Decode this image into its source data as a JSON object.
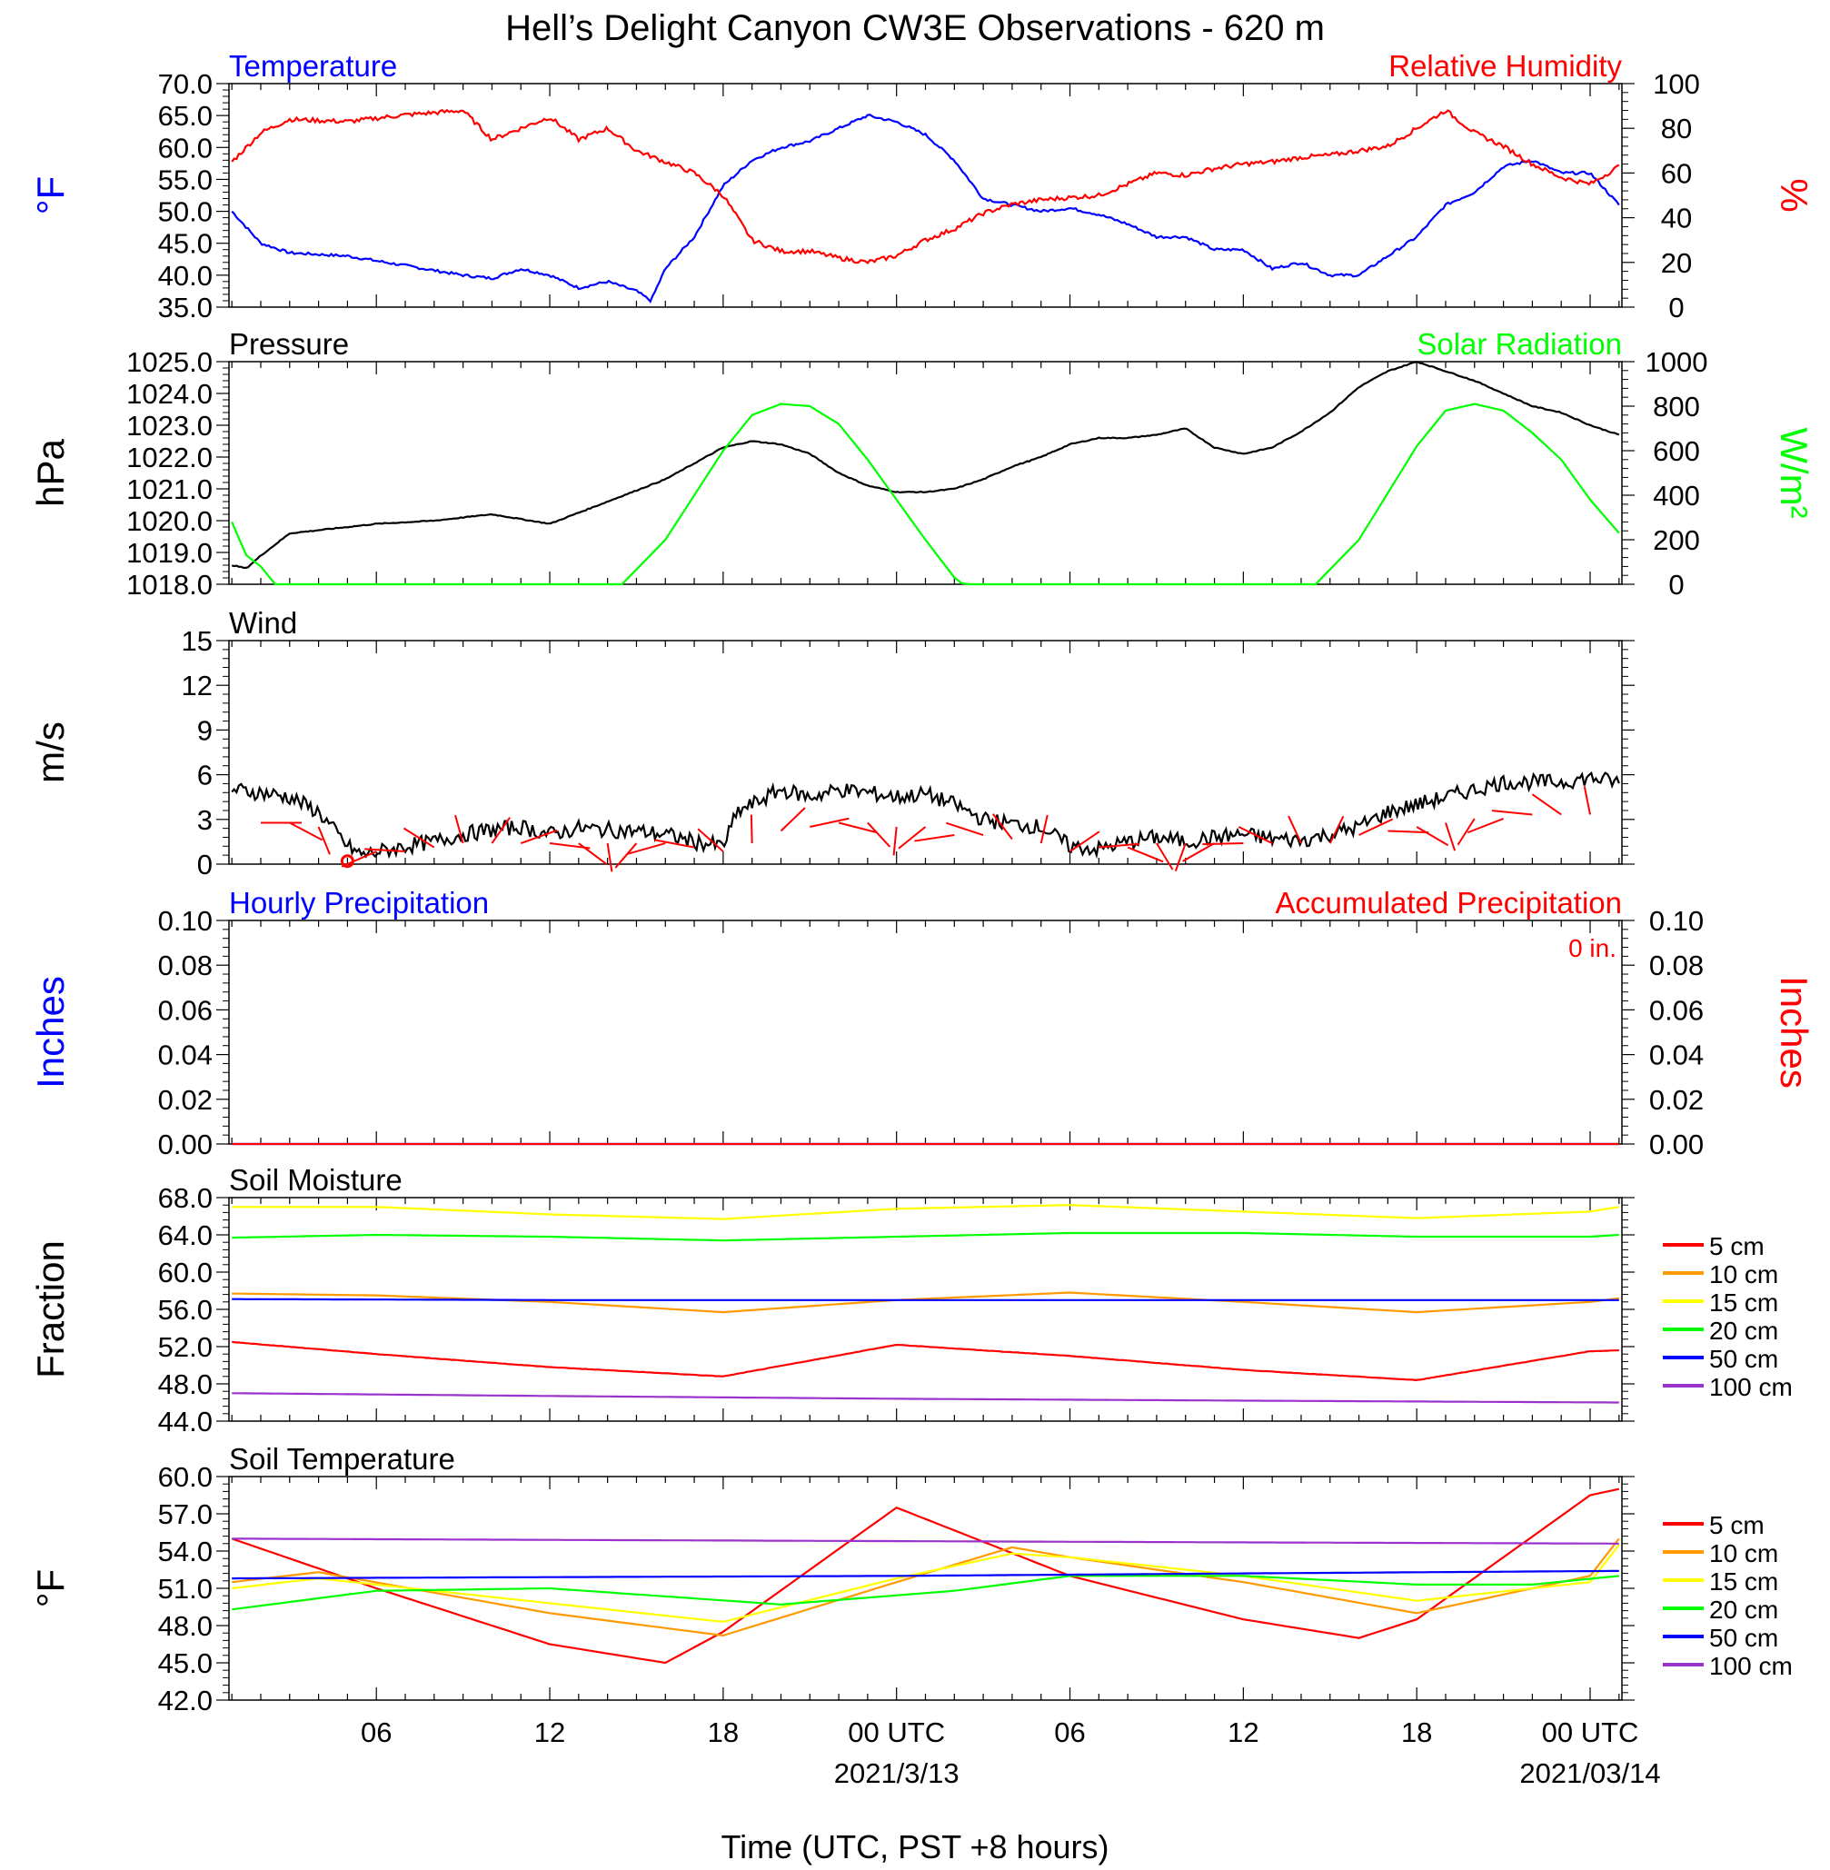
{
  "title": "Hell’s Delight Canyon CW3E Observations - 620 m",
  "xaxis_title": "Time (UTC, PST +8 hours)",
  "x_tick_labels": [
    "06",
    "12",
    "18",
    "00 UTC",
    "06",
    "12",
    "18",
    "00 UTC"
  ],
  "x_tick_hours": [
    6,
    12,
    18,
    24,
    30,
    36,
    42,
    48
  ],
  "x_range_hours": [
    0.9,
    49.1
  ],
  "date_labels": [
    {
      "hour": 24,
      "text": "2021/3/13"
    },
    {
      "hour": 48,
      "text": "2021/03/14"
    }
  ],
  "colors": {
    "temperature": "#0000ff",
    "humidity": "#ff0000",
    "pressure": "#000000",
    "solar": "#00ff00",
    "wind": "#000000",
    "barb": "#ff0000",
    "hourly_precip": "#0000ff",
    "accum_precip": "#ff0000"
  },
  "chart_data": [
    {
      "type": "line",
      "panel": "temperature-humidity",
      "left_title": "Temperature",
      "right_title": "Relative Humidity",
      "ylabel_left": "°F",
      "ylabel_right": "%",
      "ylim_left": [
        35,
        70
      ],
      "ylim_right": [
        0,
        100
      ],
      "yticks_left": [
        "70.0",
        "65.0",
        "60.0",
        "55.0",
        "50.0",
        "45.0",
        "40.0",
        "35.0"
      ],
      "yticks_right": [
        "100",
        "80",
        "60",
        "40",
        "20",
        "0"
      ],
      "series": [
        {
          "name": "Temperature",
          "axis": "left",
          "color": "#0000ff",
          "x": [
            1,
            2,
            3,
            5,
            7,
            9,
            10,
            11,
            12,
            13,
            14,
            15,
            15.5,
            16,
            17,
            18,
            19,
            20,
            21,
            22,
            23,
            24,
            25,
            26,
            27,
            28,
            29,
            30,
            31,
            32,
            33,
            34,
            35,
            36,
            37,
            38,
            39,
            40,
            41,
            42,
            43,
            44,
            45,
            46,
            47,
            48,
            49
          ],
          "y": [
            50,
            45,
            43.5,
            43,
            41.5,
            40,
            39.5,
            41,
            40,
            38,
            39,
            37.5,
            36,
            41,
            46,
            54,
            58,
            60,
            61,
            63,
            65,
            64,
            62,
            58,
            52,
            51,
            50,
            50.5,
            49.5,
            48,
            46,
            46,
            44,
            44,
            41,
            42,
            40,
            40,
            43,
            46,
            51,
            53,
            57,
            58,
            56,
            56,
            51
          ]
        },
        {
          "name": "Relative Humidity",
          "axis": "right",
          "color": "#ff0000",
          "x": [
            1,
            2,
            3,
            5,
            7,
            9,
            10,
            11,
            12,
            13,
            14,
            15,
            16,
            17,
            18,
            19,
            20,
            21,
            22,
            23,
            24,
            25,
            26,
            27,
            28,
            29,
            30,
            31,
            32,
            33,
            34,
            35,
            36,
            37,
            38,
            39,
            40,
            41,
            42,
            43,
            44,
            45,
            46,
            47,
            48,
            49
          ],
          "y": [
            65,
            78,
            84,
            83,
            86,
            88,
            75,
            80,
            85,
            75,
            80,
            70,
            65,
            60,
            50,
            30,
            25,
            25,
            22,
            20,
            23,
            30,
            35,
            42,
            46,
            48,
            49,
            50,
            55,
            60,
            59,
            62,
            64,
            65,
            67,
            68,
            70,
            72,
            80,
            88,
            78,
            72,
            64,
            58,
            55,
            63
          ]
        }
      ]
    },
    {
      "type": "line",
      "panel": "pressure-solar",
      "left_title": "Pressure",
      "right_title": "Solar Radiation",
      "ylabel_left": "hPa",
      "ylabel_right": "W/m²",
      "ylim_left": [
        1018,
        1025
      ],
      "ylim_right": [
        0,
        1000
      ],
      "yticks_left": [
        "1025.0",
        "1024.0",
        "1023.0",
        "1022.0",
        "1021.0",
        "1020.0",
        "1019.0",
        "1018.0"
      ],
      "yticks_right": [
        "1000",
        "800",
        "600",
        "400",
        "200",
        "0"
      ],
      "series": [
        {
          "name": "Pressure",
          "axis": "left",
          "color": "#000000",
          "x": [
            1,
            1.5,
            2,
            3,
            4,
            6,
            8,
            10,
            12,
            14,
            16,
            18,
            19,
            20,
            21,
            22,
            23,
            24,
            25,
            26,
            27,
            28,
            29,
            30,
            31,
            32,
            33,
            34,
            35,
            36,
            37,
            38,
            39,
            40,
            41,
            42,
            43,
            44,
            45,
            46,
            47,
            48,
            49
          ],
          "y": [
            1018.6,
            1018.5,
            1018.9,
            1019.6,
            1019.7,
            1019.9,
            1020.0,
            1020.2,
            1019.9,
            1020.6,
            1021.3,
            1022.3,
            1022.5,
            1022.4,
            1022.1,
            1021.5,
            1021.1,
            1020.9,
            1020.9,
            1021.0,
            1021.3,
            1021.7,
            1022.0,
            1022.4,
            1022.6,
            1022.6,
            1022.7,
            1022.9,
            1022.3,
            1022.1,
            1022.3,
            1022.8,
            1023.4,
            1024.2,
            1024.7,
            1025.0,
            1024.7,
            1024.4,
            1024.0,
            1023.6,
            1023.4,
            1023.0,
            1022.7
          ]
        },
        {
          "name": "Solar Radiation",
          "axis": "right",
          "color": "#00ff00",
          "x": [
            1,
            1.5,
            2,
            2.5,
            14.5,
            16,
            18,
            19,
            20,
            21,
            22,
            23,
            24,
            25,
            26,
            26.3,
            38.5,
            40,
            42,
            43,
            44,
            45,
            46,
            47,
            48,
            49
          ],
          "y": [
            280,
            130,
            80,
            0,
            0,
            200,
            600,
            760,
            810,
            800,
            720,
            560,
            380,
            200,
            30,
            0,
            0,
            200,
            620,
            780,
            810,
            780,
            680,
            560,
            380,
            230
          ]
        }
      ]
    },
    {
      "type": "line",
      "panel": "wind",
      "left_title": "Wind",
      "ylabel_left": "m/s",
      "ylim_left": [
        0,
        15
      ],
      "yticks_left": [
        "15",
        "12",
        "9",
        "6",
        "3",
        "0"
      ],
      "series": [
        {
          "name": "Wind",
          "axis": "left",
          "color": "#000000",
          "x": [
            1,
            2,
            3,
            4,
            5,
            5.5,
            6,
            7,
            8,
            9,
            10,
            11,
            12,
            13,
            14,
            15,
            16,
            17,
            18,
            18.5,
            19,
            20,
            21,
            22,
            23,
            24,
            25,
            26,
            27,
            28,
            29,
            30,
            31,
            32,
            33,
            34,
            35,
            36,
            37,
            38,
            39,
            40,
            41,
            42,
            43,
            44,
            45,
            46,
            47,
            48,
            49
          ],
          "y": [
            5,
            4.8,
            4.5,
            3.5,
            1.2,
            0.6,
            0.8,
            1.2,
            1.5,
            2,
            2.3,
            2.5,
            2,
            2.4,
            2.3,
            2.2,
            2,
            1.5,
            1.2,
            3.5,
            4,
            5,
            4.5,
            5,
            4.8,
            4.5,
            4.7,
            4,
            3,
            2.7,
            2.5,
            1.2,
            1,
            1.5,
            1.8,
            1.5,
            1.8,
            2,
            1.7,
            1.6,
            2,
            2.5,
            3.5,
            4,
            4.5,
            5,
            5.5,
            5.5,
            5.5,
            5.8,
            5.5
          ]
        }
      ]
    },
    {
      "type": "line",
      "panel": "precipitation",
      "left_title": "Hourly Precipitation",
      "right_title": "Accumulated Precipitation",
      "ylabel_left": "Inches",
      "ylabel_right": "Inches",
      "annotation": "0 in.",
      "ylim_left": [
        0,
        0.1
      ],
      "ylim_right": [
        0,
        0.1
      ],
      "yticks_left": [
        "0.10",
        "0.08",
        "0.06",
        "0.04",
        "0.02",
        "0.00"
      ],
      "yticks_right": [
        "0.10",
        "0.08",
        "0.06",
        "0.04",
        "0.02",
        "0.00"
      ],
      "series": [
        {
          "name": "Hourly Precipitation",
          "axis": "left",
          "color": "#0000ff",
          "x": [
            1,
            49
          ],
          "y": [
            0,
            0
          ]
        },
        {
          "name": "Accumulated Precipitation",
          "axis": "right",
          "color": "#ff0000",
          "x": [
            1,
            49
          ],
          "y": [
            0,
            0
          ]
        }
      ]
    },
    {
      "type": "line",
      "panel": "soil-moisture",
      "left_title": "Soil Moisture",
      "ylabel_left": "Fraction",
      "ylim_left": [
        44,
        68
      ],
      "yticks_left": [
        "68.0",
        "64.0",
        "60.0",
        "56.0",
        "52.0",
        "48.0",
        "44.0"
      ],
      "series": [
        {
          "name": "5 cm",
          "color": "#ff0000",
          "x": [
            1,
            6,
            12,
            18,
            24,
            30,
            36,
            42,
            48,
            49
          ],
          "y": [
            52.5,
            51.2,
            49.8,
            48.8,
            52.2,
            51.0,
            49.5,
            48.4,
            51.5,
            51.6
          ]
        },
        {
          "name": "10 cm",
          "color": "#ff9900",
          "x": [
            1,
            6,
            12,
            18,
            24,
            30,
            36,
            42,
            48,
            49
          ],
          "y": [
            57.7,
            57.5,
            56.8,
            55.7,
            57.0,
            57.8,
            56.8,
            55.7,
            56.8,
            57.2
          ]
        },
        {
          "name": "15 cm",
          "color": "#ffff00",
          "x": [
            1,
            6,
            12,
            18,
            24,
            30,
            36,
            42,
            48,
            49
          ],
          "y": [
            67.0,
            67.0,
            66.2,
            65.7,
            66.8,
            67.2,
            66.5,
            65.8,
            66.5,
            67.0
          ]
        },
        {
          "name": "20 cm",
          "color": "#00ff00",
          "x": [
            1,
            6,
            12,
            18,
            24,
            30,
            36,
            42,
            48,
            49
          ],
          "y": [
            63.7,
            64.0,
            63.8,
            63.4,
            63.8,
            64.2,
            64.2,
            63.8,
            63.8,
            64.0
          ]
        },
        {
          "name": "50 cm",
          "color": "#0000ff",
          "x": [
            1,
            12,
            24,
            36,
            49
          ],
          "y": [
            57.1,
            57.0,
            57.0,
            57.0,
            57.0
          ]
        },
        {
          "name": "100 cm",
          "color": "#9933cc",
          "x": [
            1,
            12,
            24,
            36,
            49
          ],
          "y": [
            47.0,
            46.7,
            46.4,
            46.2,
            46.0
          ]
        }
      ]
    },
    {
      "type": "line",
      "panel": "soil-temperature",
      "left_title": "Soil Temperature",
      "ylabel_left": "°F",
      "ylim_left": [
        42,
        60
      ],
      "yticks_left": [
        "60.0",
        "57.0",
        "54.0",
        "51.0",
        "48.0",
        "45.0",
        "42.0"
      ],
      "series": [
        {
          "name": "5 cm",
          "color": "#ff0000",
          "x": [
            1,
            6,
            12,
            16,
            18,
            24,
            30,
            36,
            40,
            42,
            48,
            49
          ],
          "y": [
            55,
            51,
            46.5,
            45,
            47.5,
            57.5,
            52,
            48.5,
            47,
            48.5,
            58.5,
            59
          ]
        },
        {
          "name": "10 cm",
          "color": "#ff9900",
          "x": [
            1,
            4,
            12,
            18,
            24,
            28,
            30,
            36,
            42,
            48,
            49
          ],
          "y": [
            51.5,
            52.3,
            49,
            47.2,
            51.5,
            54.3,
            53.5,
            51.5,
            49,
            52,
            55
          ]
        },
        {
          "name": "15 cm",
          "color": "#ffff00",
          "x": [
            1,
            4,
            12,
            18,
            24,
            28,
            30,
            36,
            42,
            48,
            49
          ],
          "y": [
            51,
            51.8,
            49.8,
            48.3,
            51.8,
            53.8,
            53.5,
            52,
            50,
            51.5,
            54.5
          ]
        },
        {
          "name": "20 cm",
          "color": "#00ff00",
          "x": [
            1,
            6,
            12,
            20,
            26,
            30,
            36,
            42,
            46,
            49
          ],
          "y": [
            49.3,
            50.8,
            51,
            49.7,
            50.8,
            52,
            52,
            51.3,
            51.3,
            52
          ]
        },
        {
          "name": "50 cm",
          "color": "#0000ff",
          "x": [
            1,
            12,
            24,
            36,
            49
          ],
          "y": [
            51.8,
            51.9,
            52,
            52.2,
            52.4
          ]
        },
        {
          "name": "100 cm",
          "color": "#9933cc",
          "x": [
            1,
            12,
            24,
            36,
            49
          ],
          "y": [
            55,
            54.9,
            54.8,
            54.7,
            54.6
          ]
        }
      ]
    }
  ],
  "wind_barbs": {
    "color": "#ff0000",
    "hours": [
      2,
      3,
      4,
      5,
      6,
      7,
      8,
      9,
      10,
      11,
      12,
      13,
      14,
      15,
      16,
      17,
      18,
      19,
      20,
      21,
      22,
      23,
      24,
      25,
      26,
      27,
      28,
      29,
      30,
      31,
      32,
      33,
      34,
      35,
      36,
      37,
      38,
      39,
      40,
      41,
      42,
      43,
      44,
      45,
      46,
      47,
      48
    ],
    "speeds": [
      4.5,
      4.5,
      4,
      0,
      1,
      1,
      1.5,
      2,
      2,
      2,
      2,
      2,
      2,
      2,
      2,
      1.5,
      1,
      2,
      3.5,
      4,
      4.5,
      4.5,
      4,
      4,
      3,
      3,
      2.5,
      2,
      1,
      1.5,
      1.5,
      2,
      2,
      2,
      2,
      2,
      2,
      2,
      3,
      3.5,
      4,
      4.5,
      5,
      5,
      5.5,
      5.5,
      5.5
    ],
    "calm_hours": [
      5
    ]
  },
  "legends": {
    "soil_moisture": [
      "5 cm",
      "10 cm",
      "15 cm",
      "20 cm",
      "50 cm",
      "100 cm"
    ],
    "soil_temperature": [
      "5 cm",
      "10 cm",
      "15 cm",
      "20 cm",
      "50 cm",
      "100 cm"
    ]
  }
}
